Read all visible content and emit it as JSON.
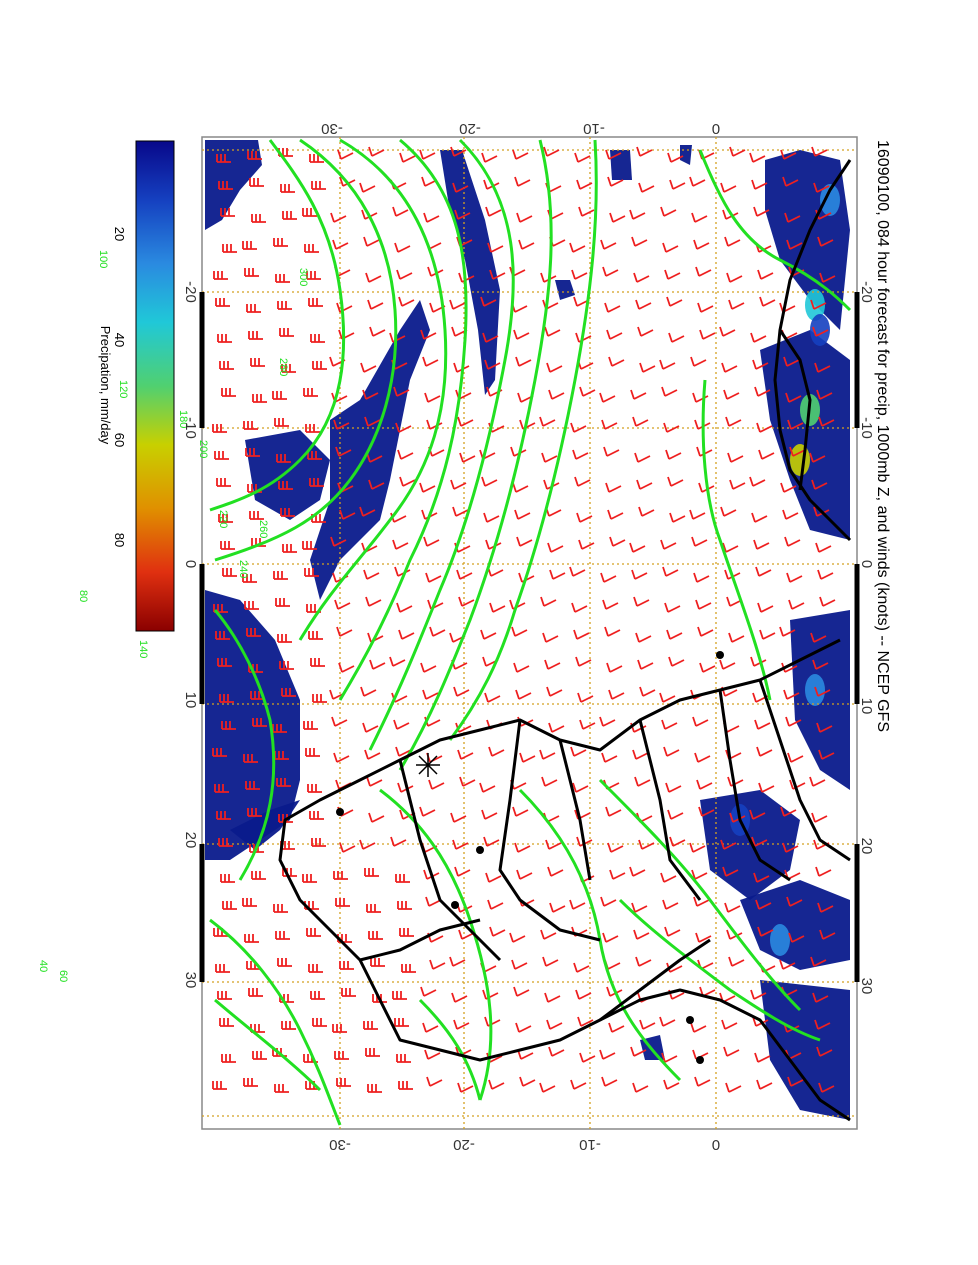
{
  "title": "16090100, 084 hour forecast for precip, 1000mb Z, and winds (knots) -- NCEP GFS",
  "colorbar": {
    "label": "Precipation, mm/day",
    "ticks": [
      "20",
      "40",
      "60",
      "80"
    ],
    "range": [
      0,
      100
    ],
    "stops": [
      "#08088a",
      "#1540c0",
      "#2a8ae0",
      "#20c8d8",
      "#50d070",
      "#c8d000",
      "#e09000",
      "#e03010",
      "#8a0000"
    ]
  },
  "axes": {
    "top_ticks": [
      "-30",
      "-20",
      "-10",
      "0"
    ],
    "bottom_ticks": [
      "-30",
      "-20",
      "-10",
      "0"
    ],
    "left_ticks": [
      "-20",
      "-10",
      "0",
      "10",
      "20",
      "30"
    ],
    "right_ticks": [
      "-20",
      "-10",
      "0",
      "10",
      "20",
      "30"
    ]
  },
  "contour_labels": [
    "300",
    "280",
    "260",
    "240",
    "220",
    "200",
    "180",
    "160",
    "140",
    "120",
    "100",
    "80",
    "60",
    "40"
  ],
  "colors": {
    "precip": "#0a1a8c",
    "contour": "#22e022",
    "barb": "#ee2020",
    "grid": "#d4a020",
    "coast": "#000000"
  }
}
